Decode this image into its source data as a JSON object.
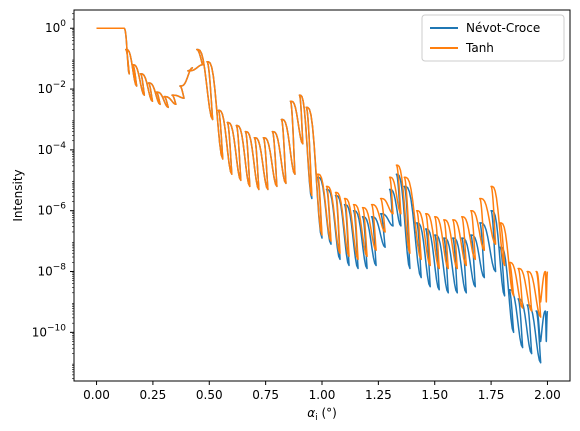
{
  "chart_data": {
    "type": "line",
    "xlabel": "α_i (°)",
    "ylabel": "Intensity",
    "xlim": [
      -0.1,
      2.1
    ],
    "ylim_log10": [
      -11.6,
      0.6
    ],
    "y_scale": "log",
    "grid": false,
    "legend_position": "top-right",
    "x_ticks": [
      0.0,
      0.25,
      0.5,
      0.75,
      1.0,
      1.25,
      1.5,
      1.75,
      2.0
    ],
    "x_tick_labels": [
      "0.00",
      "0.25",
      "0.50",
      "0.75",
      "1.00",
      "1.25",
      "1.50",
      "1.75",
      "2.00"
    ],
    "y_tick_exponents": [
      0,
      -2,
      -4,
      -6,
      -8,
      -10
    ],
    "y_tick_labels": [
      "10^0",
      "10^-2",
      "10^-4",
      "10^-6",
      "10^-8",
      "10^-10"
    ],
    "series": [
      {
        "name": "Névot-Croce",
        "color": "#1f77b4",
        "peaks": [
          [
            0.0,
            0.0
          ],
          [
            0.12,
            0.0
          ],
          [
            0.13,
            -0.7
          ],
          [
            0.16,
            -1.2
          ],
          [
            0.195,
            -1.5
          ],
          [
            0.23,
            -1.8
          ],
          [
            0.265,
            -2.1
          ],
          [
            0.3,
            -2.25
          ],
          [
            0.335,
            -2.2
          ],
          [
            0.37,
            -1.9
          ],
          [
            0.405,
            -1.4
          ],
          [
            0.445,
            -0.7
          ],
          [
            0.49,
            -1.1
          ],
          [
            0.54,
            -2.7
          ],
          [
            0.58,
            -3.1
          ],
          [
            0.62,
            -3.2
          ],
          [
            0.66,
            -3.4
          ],
          [
            0.7,
            -3.6
          ],
          [
            0.74,
            -3.6
          ],
          [
            0.78,
            -3.4
          ],
          [
            0.82,
            -3.0
          ],
          [
            0.86,
            -2.4
          ],
          [
            0.9,
            -2.2
          ],
          [
            0.93,
            -2.6
          ],
          [
            0.98,
            -4.9
          ],
          [
            1.02,
            -5.3
          ],
          [
            1.06,
            -5.5
          ],
          [
            1.1,
            -5.8
          ],
          [
            1.14,
            -6.0
          ],
          [
            1.18,
            -6.2
          ],
          [
            1.22,
            -6.2
          ],
          [
            1.26,
            -6.1
          ],
          [
            1.3,
            -5.3
          ],
          [
            1.33,
            -4.8
          ],
          [
            1.365,
            -5.2
          ],
          [
            1.42,
            -6.4
          ],
          [
            1.46,
            -6.6
          ],
          [
            1.5,
            -6.8
          ],
          [
            1.54,
            -6.9
          ],
          [
            1.58,
            -6.9
          ],
          [
            1.62,
            -6.9
          ],
          [
            1.66,
            -6.8
          ],
          [
            1.7,
            -6.4
          ],
          [
            1.75,
            -6.0
          ],
          [
            1.79,
            -7.2
          ],
          [
            1.83,
            -8.6
          ],
          [
            1.87,
            -8.9
          ],
          [
            1.91,
            -9.1
          ],
          [
            1.95,
            -9.3
          ],
          [
            1.99,
            -9.3
          ],
          [
            2.0,
            -9.3
          ]
        ],
        "dips": [
          [
            0.145,
            -1.5
          ],
          [
            0.178,
            -1.9
          ],
          [
            0.212,
            -2.2
          ],
          [
            0.248,
            -2.4
          ],
          [
            0.282,
            -2.5
          ],
          [
            0.318,
            -2.6
          ],
          [
            0.352,
            -2.5
          ],
          [
            0.388,
            -2.3
          ],
          [
            0.425,
            -1.3
          ],
          [
            0.47,
            -1.2
          ],
          [
            0.515,
            -3.0
          ],
          [
            0.56,
            -4.3
          ],
          [
            0.6,
            -4.8
          ],
          [
            0.64,
            -5.0
          ],
          [
            0.68,
            -5.2
          ],
          [
            0.72,
            -5.3
          ],
          [
            0.76,
            -5.3
          ],
          [
            0.8,
            -5.2
          ],
          [
            0.84,
            -5.1
          ],
          [
            0.88,
            -4.8
          ],
          [
            0.915,
            -3.8
          ],
          [
            0.955,
            -5.6
          ],
          [
            1.0,
            -6.9
          ],
          [
            1.04,
            -7.1
          ],
          [
            1.08,
            -7.6
          ],
          [
            1.12,
            -7.8
          ],
          [
            1.16,
            -7.9
          ],
          [
            1.2,
            -7.9
          ],
          [
            1.24,
            -7.8
          ],
          [
            1.28,
            -7.2
          ],
          [
            1.315,
            -6.5
          ],
          [
            1.35,
            -6.5
          ],
          [
            1.39,
            -7.9
          ],
          [
            1.44,
            -8.2
          ],
          [
            1.48,
            -8.5
          ],
          [
            1.52,
            -8.6
          ],
          [
            1.56,
            -8.7
          ],
          [
            1.6,
            -8.7
          ],
          [
            1.64,
            -8.7
          ],
          [
            1.68,
            -8.5
          ],
          [
            1.72,
            -8.2
          ],
          [
            1.77,
            -8.0
          ],
          [
            1.81,
            -8.8
          ],
          [
            1.85,
            -10.0
          ],
          [
            1.89,
            -10.5
          ],
          [
            1.93,
            -10.7
          ],
          [
            1.97,
            -11.0
          ]
        ]
      },
      {
        "name": "Tanh",
        "color": "#ff7f0e",
        "peaks": [
          [
            0.0,
            0.0
          ],
          [
            0.12,
            0.0
          ],
          [
            0.13,
            -0.7
          ],
          [
            0.16,
            -1.2
          ],
          [
            0.195,
            -1.5
          ],
          [
            0.23,
            -1.8
          ],
          [
            0.265,
            -2.1
          ],
          [
            0.3,
            -2.25
          ],
          [
            0.335,
            -2.2
          ],
          [
            0.37,
            -1.9
          ],
          [
            0.405,
            -1.4
          ],
          [
            0.445,
            -0.7
          ],
          [
            0.49,
            -1.1
          ],
          [
            0.54,
            -2.7
          ],
          [
            0.58,
            -3.1
          ],
          [
            0.62,
            -3.2
          ],
          [
            0.66,
            -3.4
          ],
          [
            0.7,
            -3.6
          ],
          [
            0.74,
            -3.6
          ],
          [
            0.78,
            -3.4
          ],
          [
            0.82,
            -3.0
          ],
          [
            0.86,
            -2.4
          ],
          [
            0.9,
            -2.2
          ],
          [
            0.93,
            -2.6
          ],
          [
            0.98,
            -4.8
          ],
          [
            1.02,
            -5.2
          ],
          [
            1.06,
            -5.4
          ],
          [
            1.1,
            -5.6
          ],
          [
            1.14,
            -5.8
          ],
          [
            1.18,
            -5.9
          ],
          [
            1.22,
            -5.8
          ],
          [
            1.26,
            -5.6
          ],
          [
            1.3,
            -4.9
          ],
          [
            1.33,
            -4.5
          ],
          [
            1.365,
            -4.9
          ],
          [
            1.42,
            -6.0
          ],
          [
            1.46,
            -6.1
          ],
          [
            1.5,
            -6.2
          ],
          [
            1.54,
            -6.3
          ],
          [
            1.58,
            -6.3
          ],
          [
            1.62,
            -6.2
          ],
          [
            1.66,
            -6.0
          ],
          [
            1.7,
            -5.6
          ],
          [
            1.75,
            -5.2
          ],
          [
            1.79,
            -6.4
          ],
          [
            1.83,
            -7.7
          ],
          [
            1.87,
            -7.9
          ],
          [
            1.91,
            -8.0
          ],
          [
            1.95,
            -8.0
          ],
          [
            1.99,
            -8.0
          ],
          [
            2.0,
            -8.0
          ]
        ],
        "dips": [
          [
            0.145,
            -1.5
          ],
          [
            0.178,
            -1.9
          ],
          [
            0.212,
            -2.2
          ],
          [
            0.248,
            -2.4
          ],
          [
            0.282,
            -2.5
          ],
          [
            0.318,
            -2.6
          ],
          [
            0.352,
            -2.5
          ],
          [
            0.388,
            -2.3
          ],
          [
            0.425,
            -1.3
          ],
          [
            0.47,
            -1.2
          ],
          [
            0.515,
            -3.0
          ],
          [
            0.56,
            -4.3
          ],
          [
            0.6,
            -4.8
          ],
          [
            0.64,
            -5.0
          ],
          [
            0.68,
            -5.2
          ],
          [
            0.72,
            -5.3
          ],
          [
            0.76,
            -5.3
          ],
          [
            0.8,
            -5.2
          ],
          [
            0.84,
            -5.1
          ],
          [
            0.88,
            -4.8
          ],
          [
            0.915,
            -3.8
          ],
          [
            0.955,
            -5.5
          ],
          [
            1.0,
            -6.8
          ],
          [
            1.04,
            -7.0
          ],
          [
            1.08,
            -7.4
          ],
          [
            1.12,
            -7.5
          ],
          [
            1.16,
            -7.6
          ],
          [
            1.2,
            -7.5
          ],
          [
            1.24,
            -7.3
          ],
          [
            1.28,
            -6.7
          ],
          [
            1.315,
            -6.1
          ],
          [
            1.35,
            -6.1
          ],
          [
            1.39,
            -7.4
          ],
          [
            1.44,
            -7.6
          ],
          [
            1.48,
            -7.8
          ],
          [
            1.52,
            -7.9
          ],
          [
            1.56,
            -7.9
          ],
          [
            1.6,
            -7.9
          ],
          [
            1.64,
            -7.8
          ],
          [
            1.68,
            -7.6
          ],
          [
            1.72,
            -7.3
          ],
          [
            1.77,
            -7.1
          ],
          [
            1.81,
            -7.8
          ],
          [
            1.85,
            -8.8
          ],
          [
            1.89,
            -9.2
          ],
          [
            1.93,
            -9.3
          ],
          [
            1.97,
            -9.5
          ]
        ]
      }
    ]
  }
}
